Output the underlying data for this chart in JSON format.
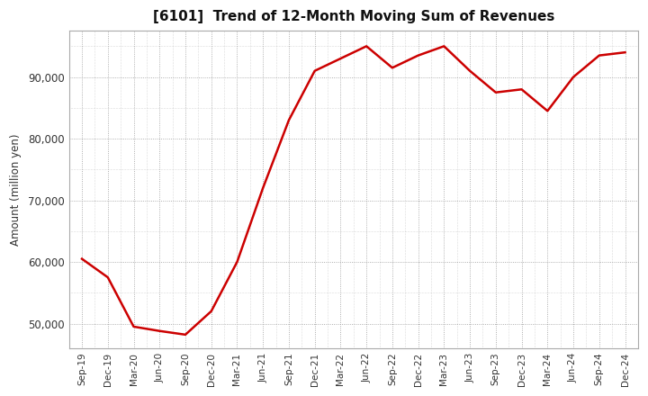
{
  "title": "[6101]  Trend of 12-Month Moving Sum of Revenues",
  "ylabel": "Amount (million yen)",
  "line_color": "#cc0000",
  "line_width": 1.8,
  "background_color": "#ffffff",
  "plot_background_color": "#ffffff",
  "grid_color": "#999999",
  "ylim": [
    46000,
    97500
  ],
  "yticks": [
    50000,
    60000,
    70000,
    80000,
    90000
  ],
  "labels": [
    "Sep-19",
    "Dec-19",
    "Mar-20",
    "Jun-20",
    "Sep-20",
    "Dec-20",
    "Mar-21",
    "Jun-21",
    "Sep-21",
    "Dec-21",
    "Mar-22",
    "Jun-22",
    "Sep-22",
    "Dec-22",
    "Mar-23",
    "Jun-23",
    "Sep-23",
    "Dec-23",
    "Mar-24",
    "Jun-24",
    "Sep-24",
    "Dec-24"
  ],
  "values": [
    60500,
    57500,
    49500,
    48800,
    48200,
    52000,
    60000,
    72000,
    83000,
    91000,
    93000,
    95000,
    91500,
    93500,
    95000,
    91000,
    87500,
    88000,
    84500,
    90000,
    93500,
    94000
  ]
}
